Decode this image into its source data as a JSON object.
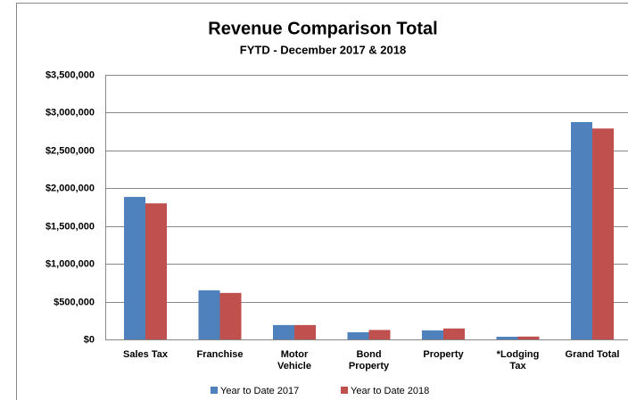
{
  "chart_data": {
    "type": "bar",
    "title": "Revenue Comparison Total",
    "subtitle": "FYTD - December 2017 & 2018",
    "categories": [
      "Sales Tax",
      "Franchise",
      "Motor Vehicle",
      "Bond Property",
      "Property",
      "*Lodging Tax",
      "Grand Total"
    ],
    "series": [
      {
        "name": "Year to Date 2017",
        "color": "#4f81bd",
        "values": [
          1885000,
          650000,
          190000,
          95000,
          120000,
          35000,
          2875000
        ]
      },
      {
        "name": "Year to Date 2018",
        "color": "#c0504d",
        "values": [
          1800000,
          615000,
          190000,
          125000,
          145000,
          38000,
          2790000
        ]
      }
    ],
    "ylim": [
      0,
      3500000
    ],
    "yticks": [
      {
        "value": 0,
        "label": "$0"
      },
      {
        "value": 500000,
        "label": "$500,000"
      },
      {
        "value": 1000000,
        "label": "$1,000,000"
      },
      {
        "value": 1500000,
        "label": "$1,500,000"
      },
      {
        "value": 2000000,
        "label": "$2,000,000"
      },
      {
        "value": 2500000,
        "label": "$2,500,000"
      },
      {
        "value": 3000000,
        "label": "$3,000,000"
      },
      {
        "value": 3500000,
        "label": "$3,500,000"
      }
    ],
    "grid": true,
    "legend": "bottom"
  }
}
